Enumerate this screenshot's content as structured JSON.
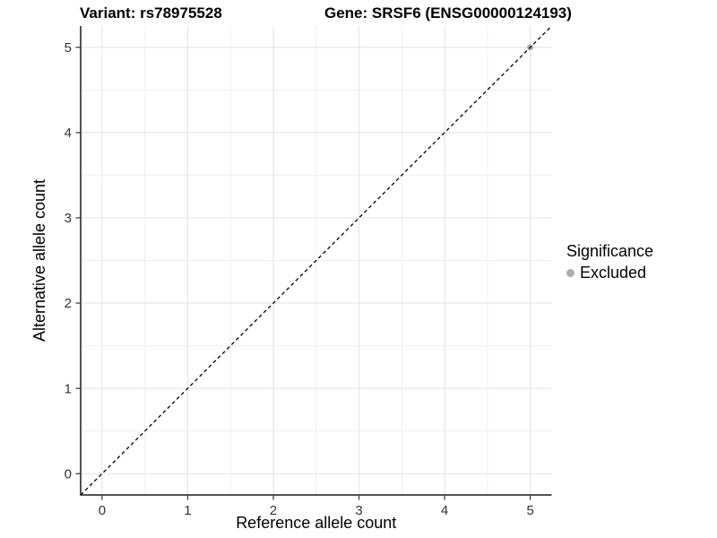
{
  "header": {
    "variant_title": "Variant: rs78975528",
    "gene_title": "Gene: SRSF6 (ENSG00000124193)"
  },
  "chart_data": {
    "type": "scatter",
    "xlabel": "Reference allele count",
    "ylabel": "Alternative allele count",
    "xlim": [
      -0.25,
      5.25
    ],
    "ylim": [
      -0.25,
      5.25
    ],
    "x_ticks": [
      0,
      1,
      2,
      3,
      4,
      5
    ],
    "y_ticks": [
      0,
      1,
      2,
      3,
      4,
      5
    ],
    "x_minor": [
      0.5,
      1.5,
      2.5,
      3.5,
      4.5
    ],
    "y_minor": [
      0.5,
      1.5,
      2.5,
      3.5,
      4.5
    ],
    "grid": {
      "major_color": "#e2e2e2",
      "minor_color": "#efefef",
      "on": true
    },
    "axis_line_color": "#1a1a1a",
    "tick_color": "#333333",
    "identity_line": {
      "style": "dashed",
      "color": "#000000",
      "x": [
        -0.25,
        5.25
      ],
      "y": [
        -0.25,
        5.25
      ]
    },
    "series": [
      {
        "name": "Excluded",
        "color": "#adadad",
        "points": [
          {
            "x": 5,
            "y": 5
          }
        ]
      }
    ],
    "legend": {
      "title": "Significance",
      "position": "right",
      "entries": [
        {
          "label": "Excluded",
          "color": "#adadad"
        }
      ]
    }
  }
}
